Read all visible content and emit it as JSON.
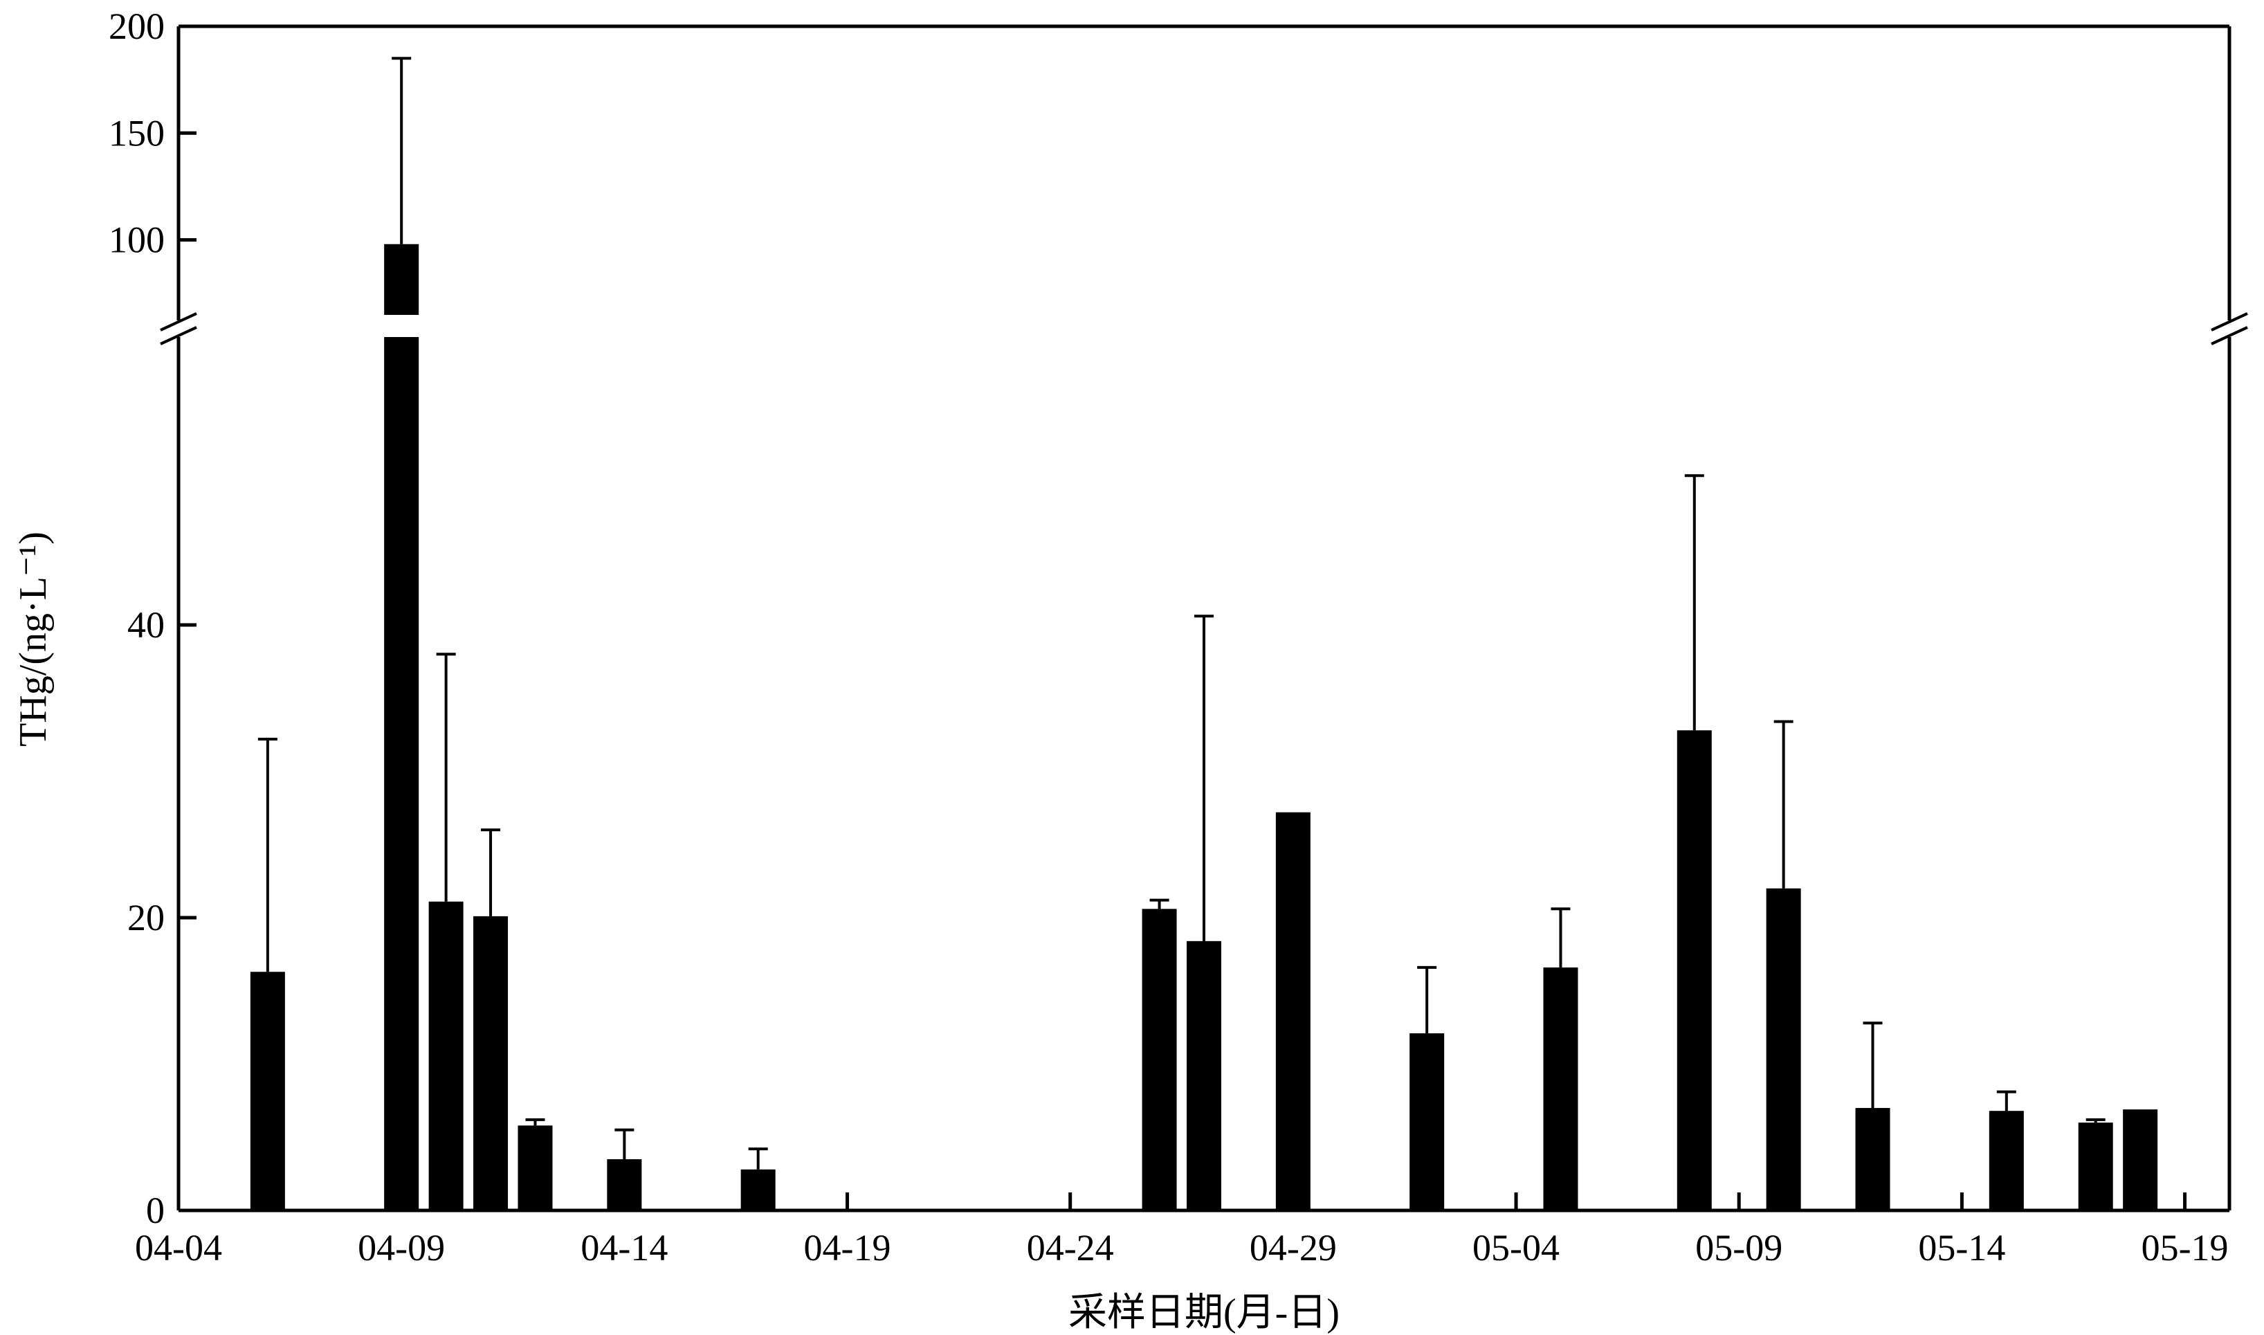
{
  "chart_data": {
    "type": "bar",
    "xlabel": "采样日期(月-日)",
    "ylabel": "THg/(ng·L⁻¹)",
    "x_axis": {
      "range": [
        "04-04",
        "05-20"
      ],
      "ticks": [
        "04-04",
        "04-09",
        "04-14",
        "04-19",
        "04-24",
        "04-29",
        "05-04",
        "05-09",
        "05-14",
        "05-19"
      ]
    },
    "y_axis": {
      "broken": true,
      "lower_range": [
        0,
        60
      ],
      "upper_range": [
        60,
        200
      ],
      "lower_ticks": [
        0,
        20,
        40
      ],
      "upper_ticks": [
        100,
        150,
        200
      ]
    },
    "grid": false,
    "bar_color": "#000000",
    "data": [
      {
        "date": "04-06",
        "value": 16.3,
        "error": 15.9
      },
      {
        "date": "04-09",
        "value": 98,
        "error": 87
      },
      {
        "date": "04-10",
        "value": 21.1,
        "error": 16.9
      },
      {
        "date": "04-11",
        "value": 20.1,
        "error": 5.9
      },
      {
        "date": "04-12",
        "value": 5.8,
        "error": 0.4
      },
      {
        "date": "04-14",
        "value": 3.5,
        "error": 2.0
      },
      {
        "date": "04-17",
        "value": 2.8,
        "error": 1.4
      },
      {
        "date": "04-26",
        "value": 20.6,
        "error": 0.6
      },
      {
        "date": "04-27",
        "value": 18.4,
        "error": 22.2
      },
      {
        "date": "04-29",
        "value": 27.2,
        "error": 0
      },
      {
        "date": "05-02",
        "value": 12.1,
        "error": 4.5
      },
      {
        "date": "05-05",
        "value": 16.6,
        "error": 4.0
      },
      {
        "date": "05-08",
        "value": 32.8,
        "error": 17.4
      },
      {
        "date": "05-10",
        "value": 22.0,
        "error": 11.4
      },
      {
        "date": "05-12",
        "value": 7.0,
        "error": 5.8
      },
      {
        "date": "05-15",
        "value": 6.8,
        "error": 1.3
      },
      {
        "date": "05-17",
        "value": 6.0,
        "error": 0.2
      },
      {
        "date": "05-18",
        "value": 6.9,
        "error": 0
      }
    ]
  }
}
